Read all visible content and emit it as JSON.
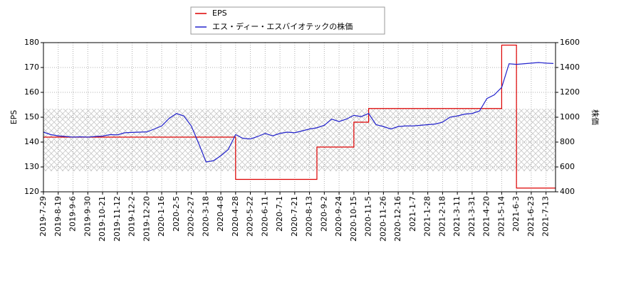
{
  "chart_data": {
    "type": "line",
    "drawstyle_first_series": "steps-post",
    "y_label": "EPS",
    "y2_label": "株価",
    "x": [
      0,
      7,
      14,
      21,
      28,
      35,
      42,
      49,
      56,
      63,
      70,
      77,
      84,
      91,
      98,
      105,
      112,
      119,
      126,
      133,
      140,
      147,
      154,
      161,
      168,
      175,
      182,
      189,
      196,
      203,
      210,
      217,
      224,
      231,
      238,
      245,
      252,
      259,
      266,
      273,
      280,
      287,
      294,
      301,
      308,
      315,
      322,
      329,
      336,
      343,
      350,
      357,
      364,
      371,
      378,
      385,
      392,
      399,
      406,
      413,
      420,
      427,
      434,
      441,
      448,
      455,
      462,
      469,
      476,
      483
    ],
    "xlim": [
      0,
      485
    ],
    "xticks": [
      {
        "value": 0,
        "label": "2019-7-29"
      },
      {
        "value": 14,
        "label": "2019-8-19"
      },
      {
        "value": 28,
        "label": "2019-9-6"
      },
      {
        "value": 42,
        "label": "2019-9-30"
      },
      {
        "value": 56,
        "label": "2019-10-21"
      },
      {
        "value": 70,
        "label": "2019-11-12"
      },
      {
        "value": 84,
        "label": "2019-12-2"
      },
      {
        "value": 98,
        "label": "2019-12-20"
      },
      {
        "value": 112,
        "label": "2020-1-16"
      },
      {
        "value": 126,
        "label": "2020-2-5"
      },
      {
        "value": 140,
        "label": "2020-2-27"
      },
      {
        "value": 154,
        "label": "2020-3-18"
      },
      {
        "value": 168,
        "label": "2020-4-8"
      },
      {
        "value": 182,
        "label": "2020-4-28"
      },
      {
        "value": 196,
        "label": "2020-5-22"
      },
      {
        "value": 210,
        "label": "2020-6-11"
      },
      {
        "value": 224,
        "label": "2020-7-1"
      },
      {
        "value": 238,
        "label": "2020-7-21"
      },
      {
        "value": 252,
        "label": "2020-8-13"
      },
      {
        "value": 266,
        "label": "2020-9-2"
      },
      {
        "value": 280,
        "label": "2020-9-24"
      },
      {
        "value": 294,
        "label": "2020-10-15"
      },
      {
        "value": 308,
        "label": "2020-11-5"
      },
      {
        "value": 322,
        "label": "2020-11-26"
      },
      {
        "value": 336,
        "label": "2020-12-16"
      },
      {
        "value": 350,
        "label": "2021-1-7"
      },
      {
        "value": 364,
        "label": "2021-1-28"
      },
      {
        "value": 378,
        "label": "2021-2-18"
      },
      {
        "value": 392,
        "label": "2021-3-11"
      },
      {
        "value": 406,
        "label": "2021-3-31"
      },
      {
        "value": 420,
        "label": "2021-4-20"
      },
      {
        "value": 434,
        "label": "2021-5-14"
      },
      {
        "value": 448,
        "label": "2021-6-3"
      },
      {
        "value": 462,
        "label": "2021-6-23"
      },
      {
        "value": 476,
        "label": "2021-7-13"
      }
    ],
    "ylim": [
      120,
      180
    ],
    "yticks": [
      120,
      130,
      140,
      150,
      160,
      170,
      180
    ],
    "y2lim": [
      400,
      1600
    ],
    "y2ticks": [
      400,
      600,
      800,
      1000,
      1200,
      1400,
      1600
    ],
    "grid": true,
    "series": [
      {
        "name": "EPS",
        "color": "#dd0000",
        "values": [
          142,
          142,
          142,
          142,
          142,
          142,
          142,
          142,
          142,
          142,
          142,
          142,
          142,
          142,
          142,
          142,
          142,
          142,
          142,
          142,
          142,
          142,
          142,
          142,
          142,
          142,
          125,
          125,
          125,
          125,
          125,
          125,
          125,
          125,
          125,
          125,
          125,
          138,
          138,
          138,
          138,
          138,
          148,
          148,
          153.5,
          153.5,
          153.5,
          153.5,
          153.5,
          153.5,
          153.5,
          153.5,
          153.5,
          153.5,
          153.5,
          153.5,
          153.5,
          153.5,
          153.5,
          153.5,
          153.5,
          153.5,
          179,
          179,
          121.5,
          121.5,
          121.5,
          121.5,
          121.5,
          121.5
        ]
      },
      {
        "name": "エス・ディー・エスバイオテックの株価",
        "color": "#2222cc",
        "axis": "y2",
        "values": [
          880,
          860,
          850,
          845,
          840,
          842,
          840,
          845,
          848,
          860,
          858,
          875,
          878,
          880,
          882,
          905,
          930,
          990,
          1030,
          1010,
          930,
          790,
          640,
          650,
          690,
          740,
          860,
          830,
          825,
          845,
          870,
          850,
          870,
          880,
          875,
          890,
          905,
          915,
          935,
          985,
          965,
          985,
          1015,
          1005,
          1030,
          940,
          925,
          905,
          925,
          930,
          930,
          935,
          940,
          945,
          960,
          1000,
          1010,
          1025,
          1030,
          1050,
          1150,
          1180,
          1240,
          1430,
          1425,
          1430,
          1435,
          1440,
          1435,
          1432
        ]
      }
    ]
  }
}
